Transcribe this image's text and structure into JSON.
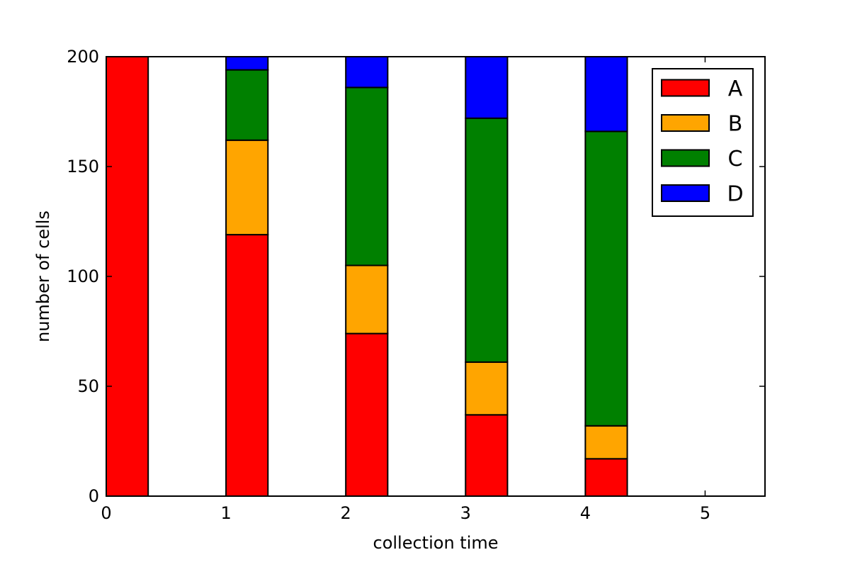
{
  "chart_data": {
    "type": "bar",
    "stacked": true,
    "x": [
      0,
      1,
      2,
      3,
      4
    ],
    "series": [
      {
        "name": "A",
        "color": "#ff0000",
        "values": [
          200,
          119,
          74,
          37,
          17
        ]
      },
      {
        "name": "B",
        "color": "#ffa500",
        "values": [
          0,
          43,
          31,
          24,
          15
        ]
      },
      {
        "name": "C",
        "color": "#008000",
        "values": [
          0,
          32,
          81,
          111,
          134
        ]
      },
      {
        "name": "D",
        "color": "#0000ff",
        "values": [
          0,
          6,
          14,
          28,
          34
        ]
      }
    ],
    "bar_width": 0.35,
    "xlabel": "collection time",
    "ylabel": "number of cells",
    "xlim": [
      0,
      5.5
    ],
    "ylim": [
      0,
      200
    ],
    "xticks": [
      "0",
      "1",
      "2",
      "3",
      "4",
      "5"
    ],
    "yticks": [
      "0",
      "50",
      "100",
      "150",
      "200"
    ],
    "legend_position": "top-right",
    "grid": false
  }
}
